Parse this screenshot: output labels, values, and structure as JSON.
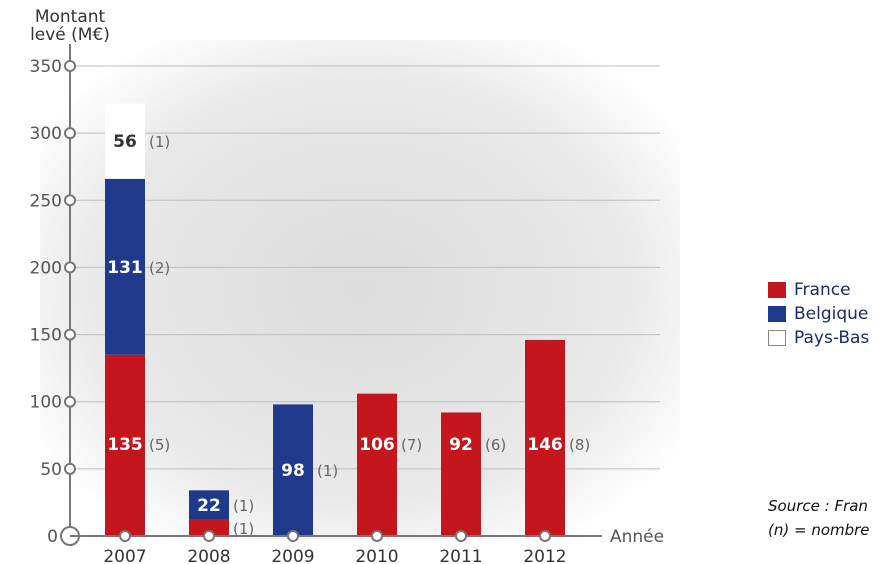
{
  "chart_data": {
    "type": "bar",
    "stacked": true,
    "ylabel": "Montant\nlevé (M€)",
    "xlabel": "Année",
    "ylim": [
      0,
      350
    ],
    "yticks": [
      0,
      50,
      100,
      150,
      200,
      250,
      300,
      350
    ],
    "categories": [
      "2007",
      "2008",
      "2009",
      "2010",
      "2011",
      "2012"
    ],
    "series": [
      {
        "name": "France",
        "color": "#c4161c",
        "values": [
          135,
          12,
          null,
          106,
          92,
          146
        ],
        "counts": [
          "(5)",
          "(1)",
          null,
          "(7)",
          "(6)",
          "(8)"
        ]
      },
      {
        "name": "Belgique",
        "color": "#1f3a8a",
        "values": [
          131,
          22,
          98,
          null,
          null,
          null
        ],
        "counts": [
          "(2)",
          "(1)",
          "(1)",
          null,
          null,
          null
        ]
      },
      {
        "name": "Pays-Bas",
        "color": "#ffffff",
        "values": [
          56,
          null,
          null,
          null,
          null,
          null
        ],
        "counts": [
          "(1)",
          null,
          null,
          null,
          null,
          null
        ]
      }
    ]
  },
  "legend": {
    "france": "France",
    "belgique": "Belgique",
    "pays_bas": "Pays-Bas"
  },
  "source": {
    "line1": "Source : Fran",
    "line2": "(n) = nombre"
  }
}
